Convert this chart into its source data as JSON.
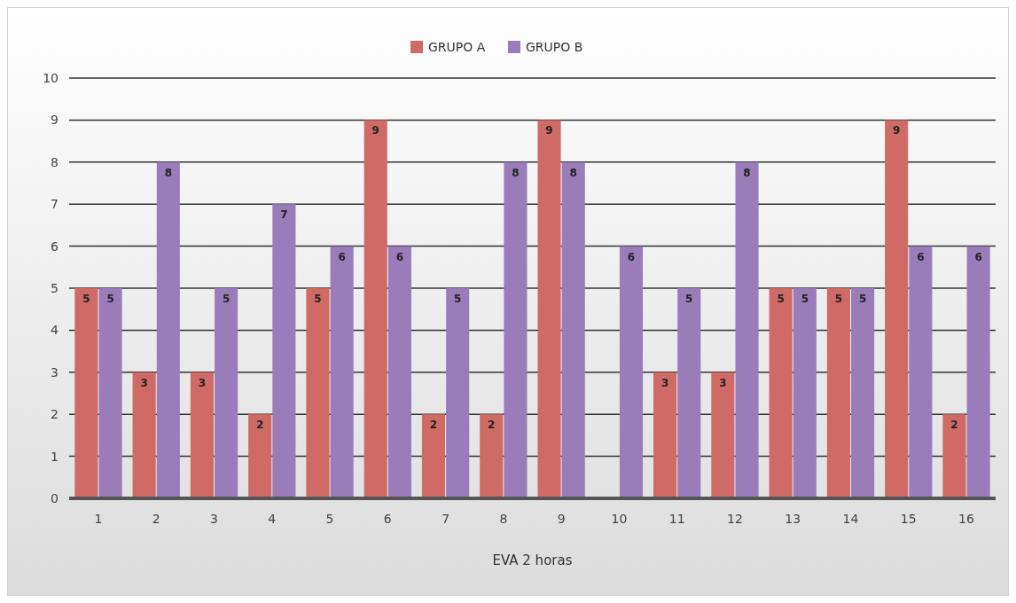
{
  "chart_data": {
    "type": "bar",
    "xlabel": "EVA 2 horas",
    "categories": [
      "1",
      "2",
      "3",
      "4",
      "5",
      "6",
      "7",
      "8",
      "9",
      "10",
      "11",
      "12",
      "13",
      "14",
      "15",
      "16"
    ],
    "series": [
      {
        "name": "GRUPO A",
        "color": "#cf6a66",
        "values": [
          5,
          3,
          3,
          2,
          5,
          9,
          2,
          2,
          9,
          0,
          3,
          3,
          5,
          5,
          9,
          2
        ],
        "value_labels": [
          "5",
          "3",
          "3",
          "2",
          "5",
          "9",
          "2",
          "2",
          "9",
          null,
          "3",
          "3",
          "5",
          "5",
          "9",
          "2"
        ]
      },
      {
        "name": "GRUPO B",
        "color": "#9a7cba",
        "values": [
          5,
          8,
          5,
          7,
          6,
          6,
          5,
          8,
          8,
          6,
          5,
          8,
          5,
          5,
          6,
          6
        ],
        "value_labels": [
          "5",
          "8",
          "5",
          "7",
          "6",
          "6",
          "5",
          "8",
          "8",
          "6",
          "5",
          "8",
          "5",
          "5",
          "6",
          "6"
        ]
      }
    ],
    "ylim": [
      0,
      10
    ],
    "yticks": [
      0,
      1,
      2,
      3,
      4,
      5,
      6,
      7,
      8,
      9,
      10
    ],
    "grid": "y",
    "legend": "top"
  }
}
